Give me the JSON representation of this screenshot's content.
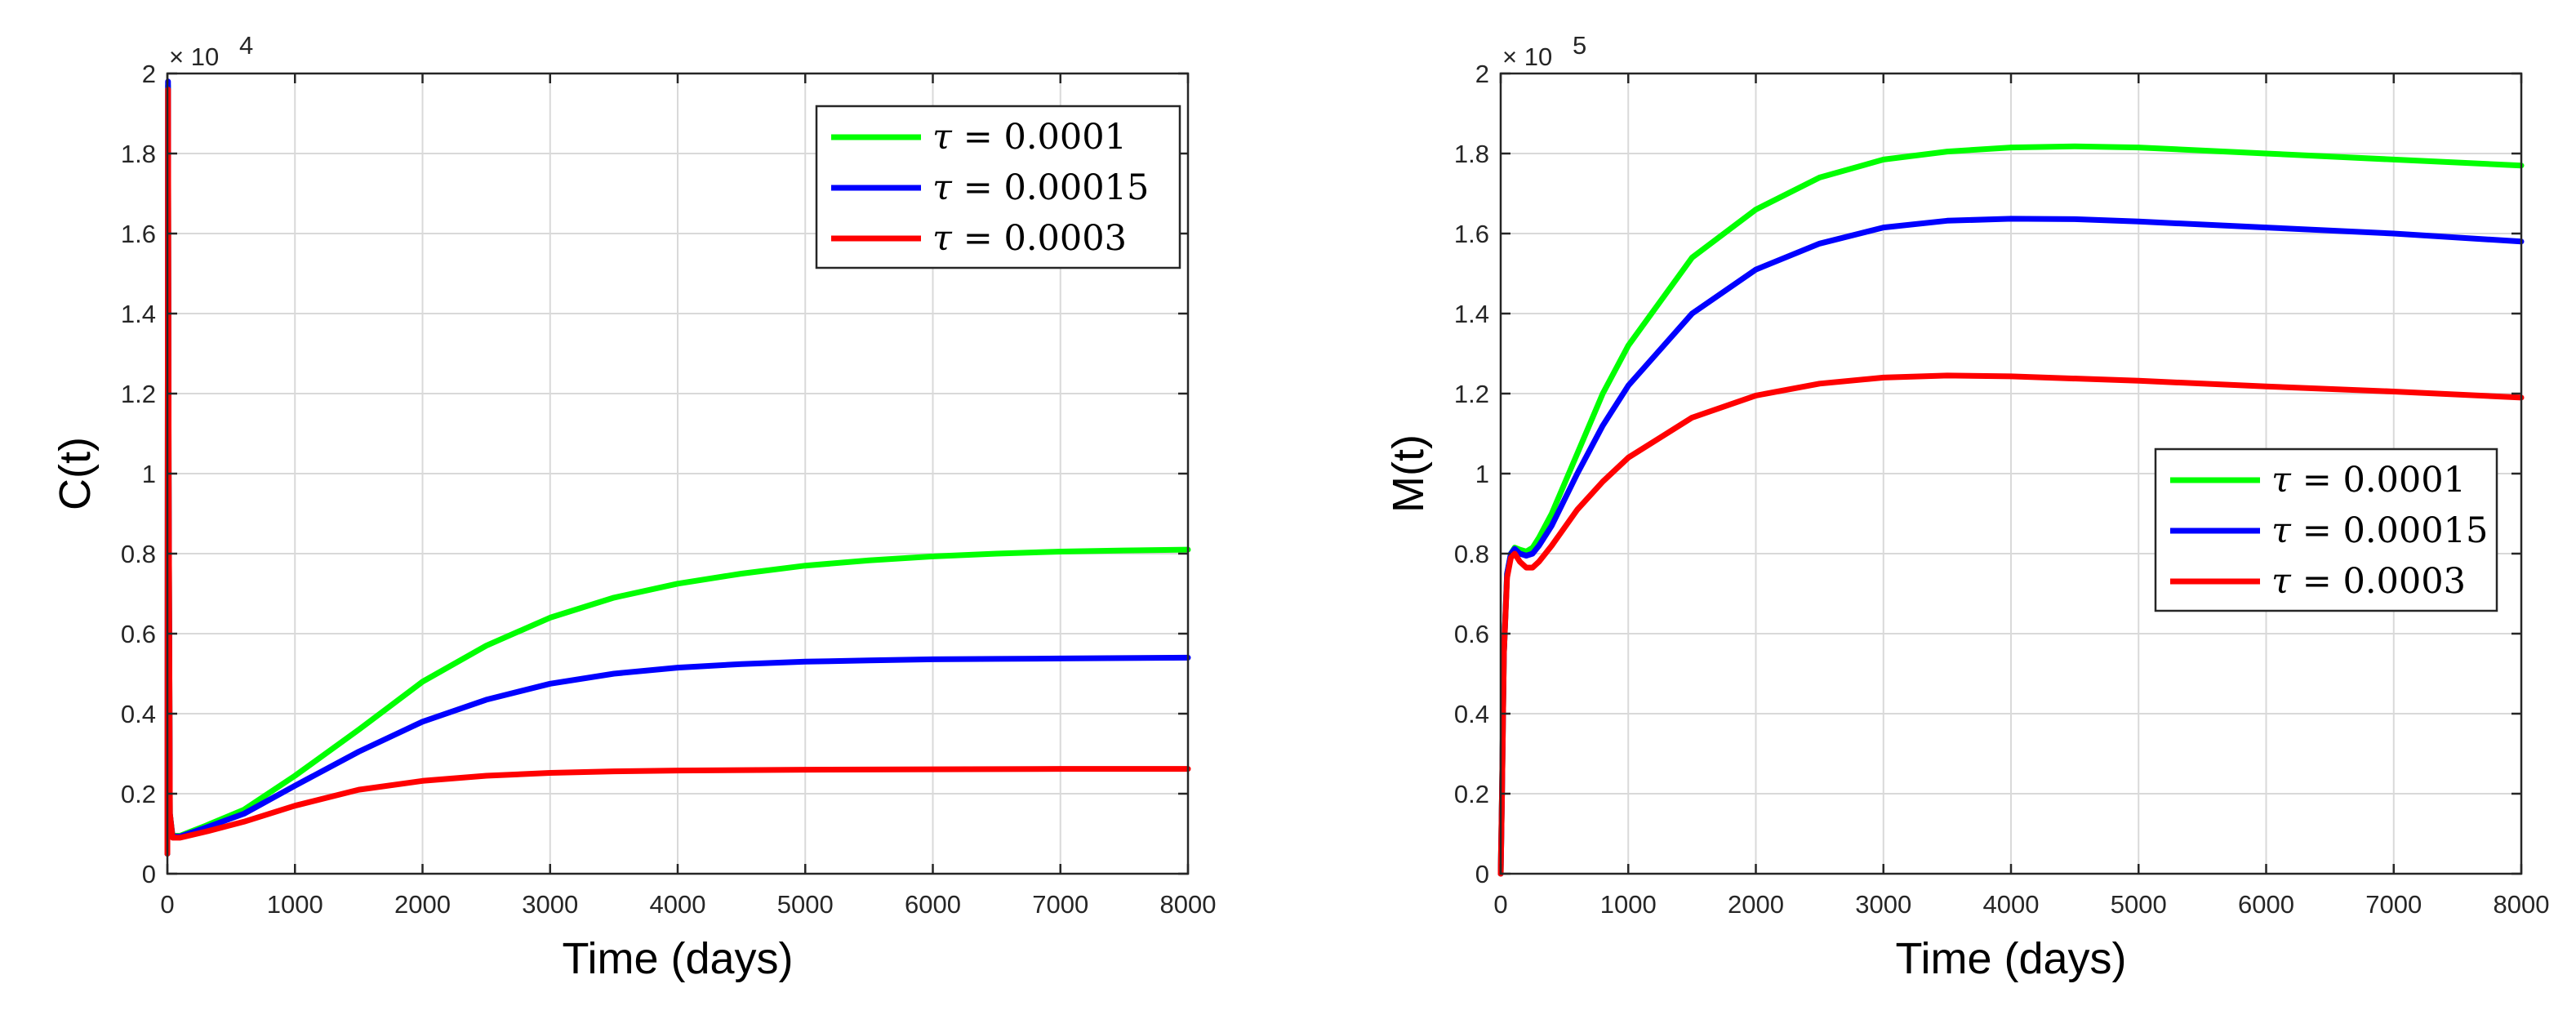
{
  "chart_data": [
    {
      "type": "line",
      "xlabel": "Time (days)",
      "ylabel": "C(t)",
      "exponent_label": "× 10",
      "exponent_power": "4",
      "xlim": [
        0,
        8000
      ],
      "ylim": [
        0,
        2
      ],
      "xticks": [
        "0",
        "1000",
        "2000",
        "3000",
        "4000",
        "5000",
        "6000",
        "7000",
        "8000"
      ],
      "yticks": [
        "0",
        "0.2",
        "0.4",
        "0.6",
        "0.8",
        "1",
        "1.2",
        "1.4",
        "1.6",
        "1.8",
        "2"
      ],
      "grid": true,
      "legend_position": "top-right",
      "series": [
        {
          "name": "τ = 0.0001",
          "legend_symbol": "τ",
          "legend_value": "= 0.0001",
          "color": "#00ff00",
          "points": [
            [
              0,
              0.05
            ],
            [
              5,
              1.97
            ],
            [
              10,
              1.0
            ],
            [
              20,
              0.15
            ],
            [
              40,
              0.095
            ],
            [
              100,
              0.095
            ],
            [
              300,
              0.12
            ],
            [
              600,
              0.16
            ],
            [
              1000,
              0.245
            ],
            [
              1500,
              0.36
            ],
            [
              2000,
              0.48
            ],
            [
              2500,
              0.57
            ],
            [
              3000,
              0.64
            ],
            [
              3500,
              0.69
            ],
            [
              4000,
              0.725
            ],
            [
              4500,
              0.75
            ],
            [
              5000,
              0.77
            ],
            [
              5500,
              0.783
            ],
            [
              6000,
              0.793
            ],
            [
              6500,
              0.8
            ],
            [
              7000,
              0.805
            ],
            [
              7500,
              0.808
            ],
            [
              8000,
              0.81
            ]
          ]
        },
        {
          "name": "τ = 0.00015",
          "legend_symbol": "τ",
          "legend_value": "= 0.00015",
          "color": "#0000ff",
          "points": [
            [
              0,
              0.05
            ],
            [
              5,
              1.98
            ],
            [
              10,
              1.0
            ],
            [
              20,
              0.15
            ],
            [
              40,
              0.093
            ],
            [
              100,
              0.093
            ],
            [
              300,
              0.115
            ],
            [
              600,
              0.15
            ],
            [
              1000,
              0.22
            ],
            [
              1500,
              0.305
            ],
            [
              2000,
              0.38
            ],
            [
              2500,
              0.435
            ],
            [
              3000,
              0.475
            ],
            [
              3500,
              0.5
            ],
            [
              4000,
              0.515
            ],
            [
              4500,
              0.524
            ],
            [
              5000,
              0.53
            ],
            [
              5500,
              0.533
            ],
            [
              6000,
              0.536
            ],
            [
              6500,
              0.537
            ],
            [
              7000,
              0.538
            ],
            [
              7500,
              0.539
            ],
            [
              8000,
              0.54
            ]
          ]
        },
        {
          "name": "τ = 0.0003",
          "legend_symbol": "τ",
          "legend_value": "= 0.0003",
          "color": "#ff0000",
          "points": [
            [
              0,
              0.05
            ],
            [
              5,
              1.96
            ],
            [
              10,
              1.0
            ],
            [
              20,
              0.15
            ],
            [
              40,
              0.09
            ],
            [
              100,
              0.09
            ],
            [
              300,
              0.105
            ],
            [
              600,
              0.13
            ],
            [
              1000,
              0.17
            ],
            [
              1500,
              0.21
            ],
            [
              2000,
              0.232
            ],
            [
              2500,
              0.245
            ],
            [
              3000,
              0.252
            ],
            [
              3500,
              0.256
            ],
            [
              4000,
              0.258
            ],
            [
              5000,
              0.26
            ],
            [
              6000,
              0.261
            ],
            [
              7000,
              0.262
            ],
            [
              8000,
              0.262
            ]
          ]
        }
      ]
    },
    {
      "type": "line",
      "xlabel": "Time (days)",
      "ylabel": "M(t)",
      "exponent_label": "× 10",
      "exponent_power": "5",
      "xlim": [
        0,
        8000
      ],
      "ylim": [
        0,
        2
      ],
      "xticks": [
        "0",
        "1000",
        "2000",
        "3000",
        "4000",
        "5000",
        "6000",
        "7000",
        "8000"
      ],
      "yticks": [
        "0",
        "0.2",
        "0.4",
        "0.6",
        "0.8",
        "1",
        "1.2",
        "1.4",
        "1.6",
        "1.8",
        "2"
      ],
      "grid": true,
      "legend_position": "center-right",
      "series": [
        {
          "name": "τ = 0.0001",
          "legend_symbol": "τ",
          "legend_value": "= 0.0001",
          "color": "#00ff00",
          "points": [
            [
              0,
              0
            ],
            [
              10,
              0.2
            ],
            [
              25,
              0.55
            ],
            [
              50,
              0.75
            ],
            [
              80,
              0.8
            ],
            [
              110,
              0.815
            ],
            [
              150,
              0.81
            ],
            [
              200,
              0.805
            ],
            [
              250,
              0.815
            ],
            [
              300,
              0.84
            ],
            [
              400,
              0.9
            ],
            [
              600,
              1.05
            ],
            [
              800,
              1.2
            ],
            [
              1000,
              1.32
            ],
            [
              1500,
              1.54
            ],
            [
              2000,
              1.66
            ],
            [
              2500,
              1.74
            ],
            [
              3000,
              1.785
            ],
            [
              3500,
              1.805
            ],
            [
              4000,
              1.815
            ],
            [
              4500,
              1.818
            ],
            [
              5000,
              1.815
            ],
            [
              6000,
              1.8
            ],
            [
              7000,
              1.785
            ],
            [
              8000,
              1.77
            ]
          ]
        },
        {
          "name": "τ = 0.00015",
          "legend_symbol": "τ",
          "legend_value": "= 0.00015",
          "color": "#0000ff",
          "points": [
            [
              0,
              0
            ],
            [
              10,
              0.2
            ],
            [
              25,
              0.55
            ],
            [
              50,
              0.75
            ],
            [
              80,
              0.8
            ],
            [
              110,
              0.812
            ],
            [
              150,
              0.8
            ],
            [
              200,
              0.795
            ],
            [
              250,
              0.8
            ],
            [
              300,
              0.82
            ],
            [
              400,
              0.87
            ],
            [
              600,
              1.0
            ],
            [
              800,
              1.12
            ],
            [
              1000,
              1.22
            ],
            [
              1500,
              1.4
            ],
            [
              2000,
              1.51
            ],
            [
              2500,
              1.575
            ],
            [
              3000,
              1.615
            ],
            [
              3500,
              1.632
            ],
            [
              4000,
              1.637
            ],
            [
              4500,
              1.636
            ],
            [
              5000,
              1.63
            ],
            [
              6000,
              1.615
            ],
            [
              7000,
              1.6
            ],
            [
              8000,
              1.58
            ]
          ]
        },
        {
          "name": "τ = 0.0003",
          "legend_symbol": "τ",
          "legend_value": "= 0.0003",
          "color": "#ff0000",
          "points": [
            [
              0,
              0
            ],
            [
              10,
              0.2
            ],
            [
              25,
              0.55
            ],
            [
              50,
              0.74
            ],
            [
              80,
              0.79
            ],
            [
              110,
              0.8
            ],
            [
              150,
              0.78
            ],
            [
              200,
              0.765
            ],
            [
              250,
              0.765
            ],
            [
              300,
              0.78
            ],
            [
              400,
              0.82
            ],
            [
              600,
              0.91
            ],
            [
              800,
              0.98
            ],
            [
              1000,
              1.04
            ],
            [
              1500,
              1.14
            ],
            [
              2000,
              1.195
            ],
            [
              2500,
              1.225
            ],
            [
              3000,
              1.24
            ],
            [
              3500,
              1.245
            ],
            [
              4000,
              1.243
            ],
            [
              5000,
              1.232
            ],
            [
              6000,
              1.218
            ],
            [
              7000,
              1.205
            ],
            [
              8000,
              1.19
            ]
          ]
        }
      ]
    }
  ]
}
